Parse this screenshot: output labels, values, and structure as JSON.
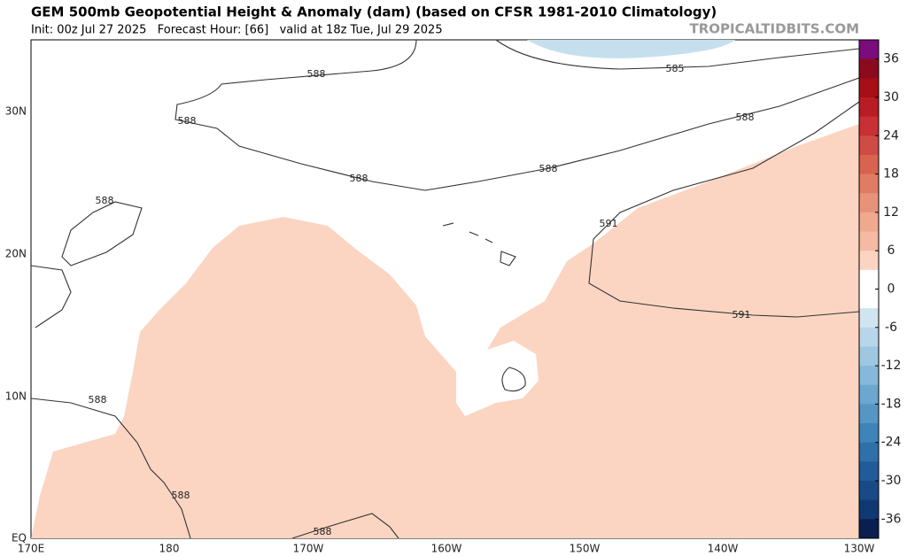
{
  "header": {
    "title": "GEM 500mb Geopotential Height & Anomaly (dam) (based on CFSR 1981-2010 Climatology)",
    "subtitle": "Init: 00z Jul 27 2025   Forecast Hour: [66]   valid at 18z Tue, Jul 29 2025",
    "watermark": "TROPICALTIDBITS.COM"
  },
  "map": {
    "lat_labels": [
      "30N",
      "20N",
      "10N",
      "EQ"
    ],
    "lon_labels": [
      "170E",
      "180",
      "170W",
      "160W",
      "150W",
      "140W",
      "130W"
    ],
    "contour_labels": [
      "588",
      "585",
      "588",
      "588",
      "588",
      "588",
      "588",
      "591",
      "591",
      "588",
      "588",
      "588"
    ]
  },
  "colorbar": {
    "range": [
      -39,
      39
    ],
    "ticks": [
      36,
      30,
      24,
      18,
      12,
      6,
      0,
      -6,
      -12,
      -18,
      -24,
      -30,
      -36
    ],
    "colors": [
      "#7b0c7b",
      "#8b0a1e",
      "#a50f15",
      "#b91c24",
      "#c83036",
      "#d04a46",
      "#d8634f",
      "#e07c63",
      "#e89379",
      "#f0a98f",
      "#f5baa3",
      "#fbd5c2",
      "#ffffff",
      "#ffffff",
      "#d1e5f0",
      "#b8d6e9",
      "#9ec8e2",
      "#85b8d9",
      "#6ba7cf",
      "#5596c4",
      "#3f84b8",
      "#2f70aa",
      "#225c98",
      "#184a85",
      "#103972",
      "#0a1f4f"
    ]
  }
}
